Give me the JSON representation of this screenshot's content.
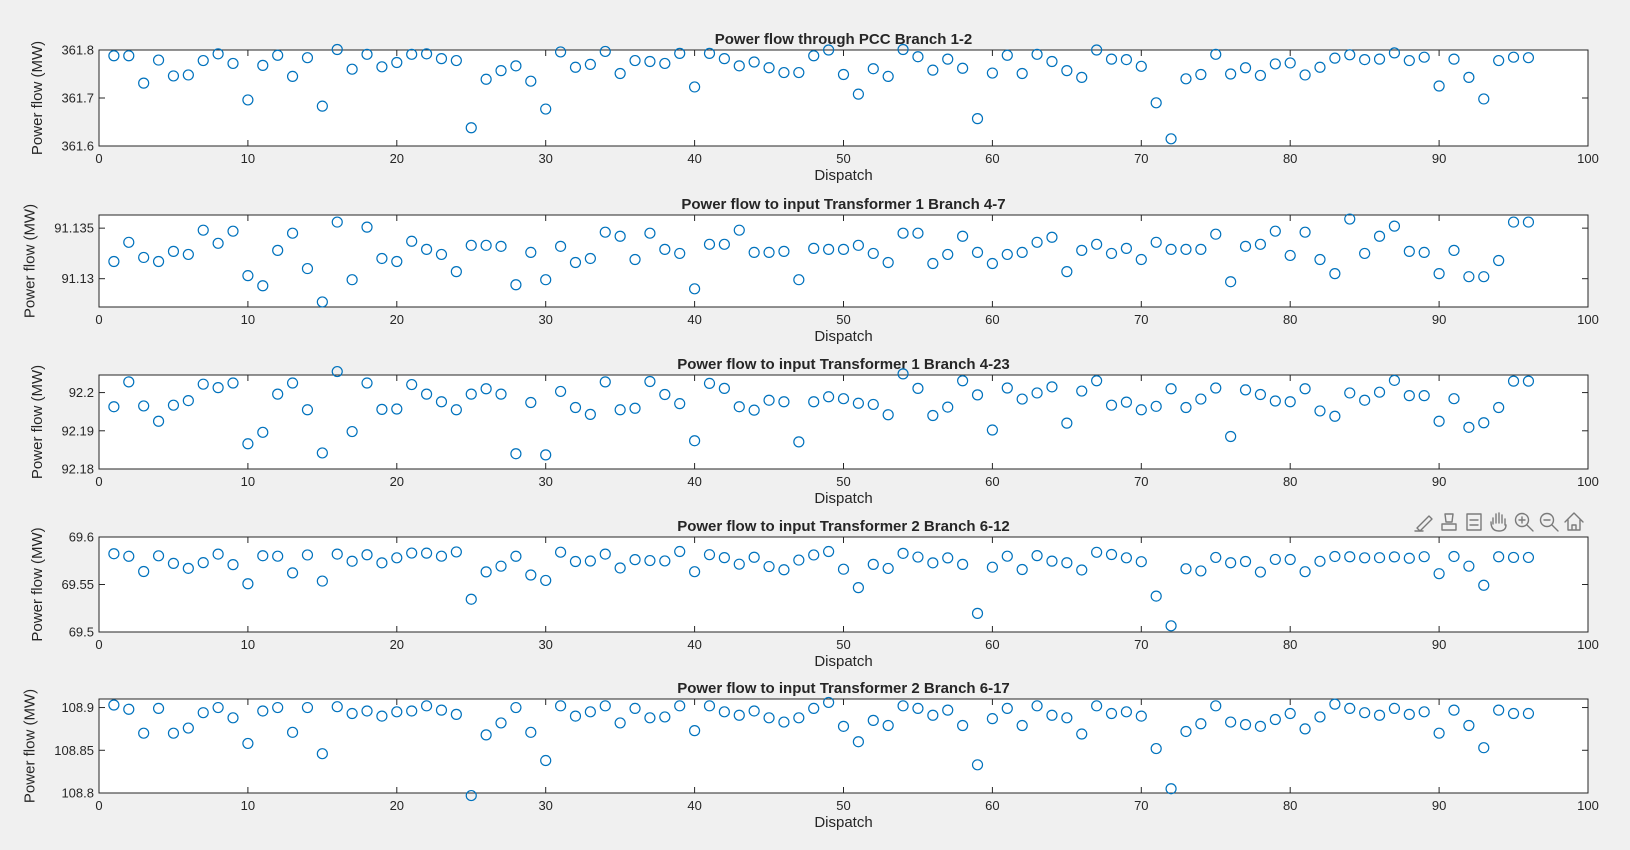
{
  "figure": {
    "background": "#f0f0f0",
    "marker_color": "#0072bd",
    "toolbar": [
      {
        "name": "brush-icon"
      },
      {
        "name": "data-tips-icon"
      },
      {
        "name": "legend-icon"
      },
      {
        "name": "pan-hand-icon"
      },
      {
        "name": "zoom-in-icon"
      },
      {
        "name": "zoom-out-icon"
      },
      {
        "name": "home-icon"
      }
    ]
  },
  "chart_data": [
    {
      "type": "scatter",
      "title": "Power flow through PCC Branch 1-2",
      "xlabel": "Dispatch",
      "ylabel": "Power flow (MW)",
      "xlim": [
        0,
        100
      ],
      "ylim": [
        361.6,
        361.8
      ],
      "xticks": [
        0,
        10,
        20,
        30,
        40,
        50,
        60,
        70,
        80,
        90,
        100
      ],
      "yticks": [
        361.6,
        361.7,
        361.8
      ],
      "ytick_labels": [
        "361.6",
        "361.7",
        "361.8"
      ],
      "x": [
        1,
        2,
        3,
        4,
        5,
        6,
        7,
        8,
        9,
        10,
        11,
        12,
        13,
        14,
        15,
        16,
        17,
        18,
        19,
        20,
        21,
        22,
        23,
        24,
        25,
        26,
        27,
        28,
        29,
        30,
        31,
        32,
        33,
        34,
        35,
        36,
        37,
        38,
        39,
        40,
        41,
        42,
        43,
        44,
        45,
        46,
        47,
        48,
        49,
        50,
        51,
        52,
        53,
        54,
        55,
        56,
        57,
        58,
        59,
        60,
        61,
        62,
        63,
        64,
        65,
        66,
        67,
        68,
        69,
        70,
        71,
        72,
        73,
        74,
        75,
        76,
        77,
        78,
        79,
        80,
        81,
        82,
        83,
        84,
        85,
        86,
        87,
        88,
        89,
        90,
        91,
        92,
        93,
        94,
        95,
        96
      ],
      "y": [
        361.788,
        361.788,
        361.731,
        361.779,
        361.746,
        361.748,
        361.778,
        361.792,
        361.772,
        361.696,
        361.768,
        361.789,
        361.745,
        361.784,
        361.683,
        361.801,
        361.76,
        361.791,
        361.765,
        361.774,
        361.791,
        361.792,
        361.782,
        361.778,
        361.638,
        361.739,
        361.757,
        361.767,
        361.735,
        361.677,
        361.796,
        361.764,
        361.77,
        361.797,
        361.751,
        361.778,
        361.776,
        361.772,
        361.793,
        361.723,
        361.793,
        361.782,
        361.767,
        361.775,
        361.763,
        361.753,
        361.753,
        361.788,
        361.8,
        361.749,
        361.708,
        361.761,
        361.745,
        361.801,
        361.786,
        361.758,
        361.781,
        361.762,
        361.657,
        361.752,
        361.789,
        361.751,
        361.791,
        361.776,
        361.757,
        361.743,
        361.8,
        361.781,
        361.78,
        361.766,
        361.69,
        361.615,
        361.74,
        361.749,
        361.791,
        361.75,
        361.763,
        361.747,
        361.771,
        361.773,
        361.748,
        361.764,
        361.783,
        361.79,
        361.78,
        361.781,
        361.794,
        361.778,
        361.785,
        361.725,
        361.781,
        361.743,
        361.698,
        361.778,
        361.785,
        361.784
      ]
    },
    {
      "type": "scatter",
      "title": "Power flow to input Transformer 1 Branch 4-7",
      "xlabel": "Dispatch",
      "ylabel": "Power flow (MW)",
      "xlim": [
        0,
        100
      ],
      "ylim": [
        91.1272,
        91.1363
      ],
      "xticks": [
        0,
        10,
        20,
        30,
        40,
        50,
        60,
        70,
        80,
        90,
        100
      ],
      "yticks": [
        91.13,
        91.135
      ],
      "ytick_labels": [
        "91.13",
        "91.135"
      ],
      "x": [
        1,
        2,
        3,
        4,
        5,
        6,
        7,
        8,
        9,
        10,
        11,
        12,
        13,
        14,
        15,
        16,
        17,
        18,
        19,
        20,
        21,
        22,
        23,
        24,
        25,
        26,
        27,
        28,
        29,
        30,
        31,
        32,
        33,
        34,
        35,
        36,
        37,
        38,
        39,
        40,
        41,
        42,
        43,
        44,
        45,
        46,
        47,
        48,
        49,
        50,
        51,
        52,
        53,
        54,
        55,
        56,
        57,
        58,
        59,
        60,
        61,
        62,
        63,
        64,
        65,
        66,
        67,
        68,
        69,
        70,
        71,
        72,
        73,
        74,
        75,
        76,
        77,
        78,
        79,
        80,
        81,
        82,
        83,
        84,
        85,
        86,
        87,
        88,
        89,
        90,
        91,
        92,
        93,
        94,
        95,
        96
      ],
      "y": [
        91.1317,
        91.1336,
        91.1321,
        91.1317,
        91.1327,
        91.1324,
        91.1348,
        91.1335,
        91.1347,
        91.1303,
        91.1293,
        91.1328,
        91.1345,
        91.131,
        91.1277,
        91.1356,
        91.1299,
        91.1351,
        91.132,
        91.1317,
        91.1337,
        91.1329,
        91.1324,
        91.1307,
        91.1333,
        91.1333,
        91.1332,
        91.1294,
        91.1326,
        91.1299,
        91.1332,
        91.1316,
        91.132,
        91.1346,
        91.1342,
        91.1319,
        91.1345,
        91.1329,
        91.1325,
        91.129,
        91.1334,
        91.1334,
        91.1348,
        91.1326,
        91.1326,
        91.1327,
        91.1299,
        91.133,
        91.1329,
        91.1329,
        91.1333,
        91.1325,
        91.1316,
        91.1345,
        91.1345,
        91.1315,
        91.1324,
        91.1342,
        91.1326,
        91.1315,
        91.1324,
        91.1326,
        91.1336,
        91.1341,
        91.1307,
        91.1328,
        91.1334,
        91.1325,
        91.133,
        91.1319,
        91.1336,
        91.1329,
        91.1329,
        91.1329,
        91.1344,
        91.1297,
        91.1332,
        91.1334,
        91.1347,
        91.1323,
        91.1346,
        91.1319,
        91.1305,
        91.1359,
        91.1325,
        91.1342,
        91.1352,
        91.1327,
        91.1326,
        91.1305,
        91.1328,
        91.1302,
        91.1302,
        91.1318,
        91.1356,
        91.1356
      ]
    },
    {
      "type": "scatter",
      "title": "Power flow to input Transformer 1 Branch 4-23",
      "xlabel": "Dispatch",
      "ylabel": "Power flow (MW)",
      "xlim": [
        0,
        100
      ],
      "ylim": [
        92.18,
        92.2046
      ],
      "xticks": [
        0,
        10,
        20,
        30,
        40,
        50,
        60,
        70,
        80,
        90,
        100
      ],
      "yticks": [
        92.18,
        92.19,
        92.2
      ],
      "ytick_labels": [
        "92.18",
        "92.19",
        "92.2"
      ],
      "x": [
        1,
        2,
        3,
        4,
        5,
        6,
        7,
        8,
        9,
        10,
        11,
        12,
        13,
        14,
        15,
        16,
        17,
        18,
        19,
        20,
        21,
        22,
        23,
        24,
        25,
        26,
        27,
        28,
        29,
        30,
        31,
        32,
        33,
        34,
        35,
        36,
        37,
        38,
        39,
        40,
        41,
        42,
        43,
        44,
        45,
        46,
        47,
        48,
        49,
        50,
        51,
        52,
        53,
        54,
        55,
        56,
        57,
        58,
        59,
        60,
        61,
        62,
        63,
        64,
        65,
        66,
        67,
        68,
        69,
        70,
        71,
        72,
        73,
        74,
        75,
        76,
        77,
        78,
        79,
        80,
        81,
        82,
        83,
        84,
        85,
        86,
        87,
        88,
        89,
        90,
        91,
        92,
        93,
        94,
        95,
        96
      ],
      "y": [
        92.1963,
        92.2028,
        92.1965,
        92.1925,
        92.1967,
        92.1979,
        92.2022,
        92.2013,
        92.2025,
        92.1866,
        92.1896,
        92.1996,
        92.2025,
        92.1955,
        92.1842,
        92.2055,
        92.1898,
        92.2025,
        92.1956,
        92.1957,
        92.2021,
        92.1996,
        92.1976,
        92.1955,
        92.1996,
        92.201,
        92.1996,
        92.184,
        92.1974,
        92.1837,
        92.2003,
        92.1961,
        92.1943,
        92.2028,
        92.1955,
        92.1959,
        92.2029,
        92.1995,
        92.1971,
        92.1874,
        92.2024,
        92.2011,
        92.1963,
        92.1954,
        92.198,
        92.1976,
        92.1871,
        92.1976,
        92.1989,
        92.1984,
        92.1972,
        92.1969,
        92.1942,
        92.2049,
        92.2011,
        92.194,
        92.1962,
        92.2031,
        92.1994,
        92.1902,
        92.2012,
        92.1983,
        92.1999,
        92.2015,
        92.192,
        92.2004,
        92.2031,
        92.1967,
        92.1975,
        92.1955,
        92.1964,
        92.201,
        92.1961,
        92.1983,
        92.2012,
        92.1885,
        92.2007,
        92.1995,
        92.1978,
        92.1976,
        92.201,
        92.1952,
        92.1938,
        92.1999,
        92.198,
        92.2001,
        92.2032,
        92.1992,
        92.1992,
        92.1925,
        92.1984,
        92.1909,
        92.1921,
        92.1961,
        92.203,
        92.203
      ]
    },
    {
      "type": "scatter",
      "title": "Power flow to input Transformer 2 Branch 6-12",
      "xlabel": "Dispatch",
      "ylabel": "Power flow (MW)",
      "xlim": [
        0,
        100
      ],
      "ylim": [
        69.5,
        69.6
      ],
      "xticks": [
        0,
        10,
        20,
        30,
        40,
        50,
        60,
        70,
        80,
        90,
        100
      ],
      "yticks": [
        69.5,
        69.55,
        69.6
      ],
      "ytick_labels": [
        "69.5",
        "69.55",
        "69.6"
      ],
      "x": [
        1,
        2,
        3,
        4,
        5,
        6,
        7,
        8,
        9,
        10,
        11,
        12,
        13,
        14,
        15,
        16,
        17,
        18,
        19,
        20,
        21,
        22,
        23,
        24,
        25,
        26,
        27,
        28,
        29,
        30,
        31,
        32,
        33,
        34,
        35,
        36,
        37,
        38,
        39,
        40,
        41,
        42,
        43,
        44,
        45,
        46,
        47,
        48,
        49,
        50,
        51,
        52,
        53,
        54,
        55,
        56,
        57,
        58,
        59,
        60,
        61,
        62,
        63,
        64,
        65,
        66,
        67,
        68,
        69,
        70,
        71,
        72,
        73,
        74,
        75,
        76,
        77,
        78,
        79,
        80,
        81,
        82,
        83,
        84,
        85,
        86,
        87,
        88,
        89,
        90,
        91,
        92,
        93,
        94,
        95,
        96
      ],
      "y": [
        69.5824,
        69.5797,
        69.5637,
        69.5802,
        69.5722,
        69.567,
        69.573,
        69.582,
        69.5709,
        69.5508,
        69.5803,
        69.5798,
        69.5622,
        69.5811,
        69.5536,
        69.582,
        69.5745,
        69.5813,
        69.5728,
        69.5781,
        69.5831,
        69.583,
        69.5798,
        69.5843,
        69.5345,
        69.5633,
        69.5693,
        69.5797,
        69.56,
        69.5543,
        69.584,
        69.5742,
        69.5747,
        69.582,
        69.5674,
        69.5762,
        69.5752,
        69.5748,
        69.5847,
        69.5635,
        69.5814,
        69.5783,
        69.5714,
        69.5787,
        69.5689,
        69.5655,
        69.5757,
        69.5811,
        69.5847,
        69.5661,
        69.5467,
        69.5712,
        69.5669,
        69.5828,
        69.5789,
        69.5728,
        69.578,
        69.5712,
        69.5196,
        69.5682,
        69.5798,
        69.5658,
        69.5804,
        69.5746,
        69.5729,
        69.5653,
        69.5839,
        69.5816,
        69.5781,
        69.574,
        69.5378,
        69.5065,
        69.5665,
        69.5643,
        69.5785,
        69.5729,
        69.5742,
        69.5631,
        69.5764,
        69.5763,
        69.5635,
        69.5744,
        69.5795,
        69.5792,
        69.5781,
        69.5782,
        69.5791,
        69.5776,
        69.5793,
        69.5614,
        69.5795,
        69.5693,
        69.5492,
        69.5792,
        69.5785,
        69.5785
      ]
    },
    {
      "type": "scatter",
      "title": "Power flow to input Transformer 2 Branch 6-17",
      "xlabel": "Dispatch",
      "ylabel": "Power flow (MW)",
      "xlim": [
        0,
        100
      ],
      "ylim": [
        108.8,
        108.91
      ],
      "xticks": [
        0,
        10,
        20,
        30,
        40,
        50,
        60,
        70,
        80,
        90,
        100
      ],
      "yticks": [
        108.8,
        108.85,
        108.9
      ],
      "ytick_labels": [
        "108.8",
        "108.85",
        "108.9"
      ],
      "x": [
        1,
        2,
        3,
        4,
        5,
        6,
        7,
        8,
        9,
        10,
        11,
        12,
        13,
        14,
        15,
        16,
        17,
        18,
        19,
        20,
        21,
        22,
        23,
        24,
        25,
        26,
        27,
        28,
        29,
        30,
        31,
        32,
        33,
        34,
        35,
        36,
        37,
        38,
        39,
        40,
        41,
        42,
        43,
        44,
        45,
        46,
        47,
        48,
        49,
        50,
        51,
        52,
        53,
        54,
        55,
        56,
        57,
        58,
        59,
        60,
        61,
        62,
        63,
        64,
        65,
        66,
        67,
        68,
        69,
        70,
        71,
        72,
        73,
        74,
        75,
        76,
        77,
        78,
        79,
        80,
        81,
        82,
        83,
        84,
        85,
        86,
        87,
        88,
        89,
        90,
        91,
        92,
        93,
        94,
        95,
        96
      ],
      "y": [
        108.903,
        108.898,
        108.87,
        108.899,
        108.87,
        108.876,
        108.894,
        108.9,
        108.888,
        108.858,
        108.896,
        108.9,
        108.871,
        108.9,
        108.846,
        108.901,
        108.893,
        108.896,
        108.89,
        108.895,
        108.896,
        108.902,
        108.897,
        108.892,
        108.797,
        108.868,
        108.882,
        108.9,
        108.871,
        108.838,
        108.902,
        108.89,
        108.895,
        108.902,
        108.882,
        108.899,
        108.888,
        108.889,
        108.902,
        108.873,
        108.902,
        108.895,
        108.891,
        108.896,
        108.888,
        108.883,
        108.888,
        108.899,
        108.906,
        108.878,
        108.86,
        108.885,
        108.879,
        108.902,
        108.899,
        108.891,
        108.897,
        108.879,
        108.833,
        108.887,
        108.899,
        108.879,
        108.902,
        108.891,
        108.888,
        108.869,
        108.902,
        108.893,
        108.895,
        108.89,
        108.852,
        108.805,
        108.872,
        108.881,
        108.902,
        108.883,
        108.88,
        108.878,
        108.886,
        108.893,
        108.875,
        108.889,
        108.904,
        108.899,
        108.894,
        108.891,
        108.899,
        108.892,
        108.895,
        108.87,
        108.897,
        108.879,
        108.853,
        108.897,
        108.893,
        108.893
      ]
    }
  ]
}
